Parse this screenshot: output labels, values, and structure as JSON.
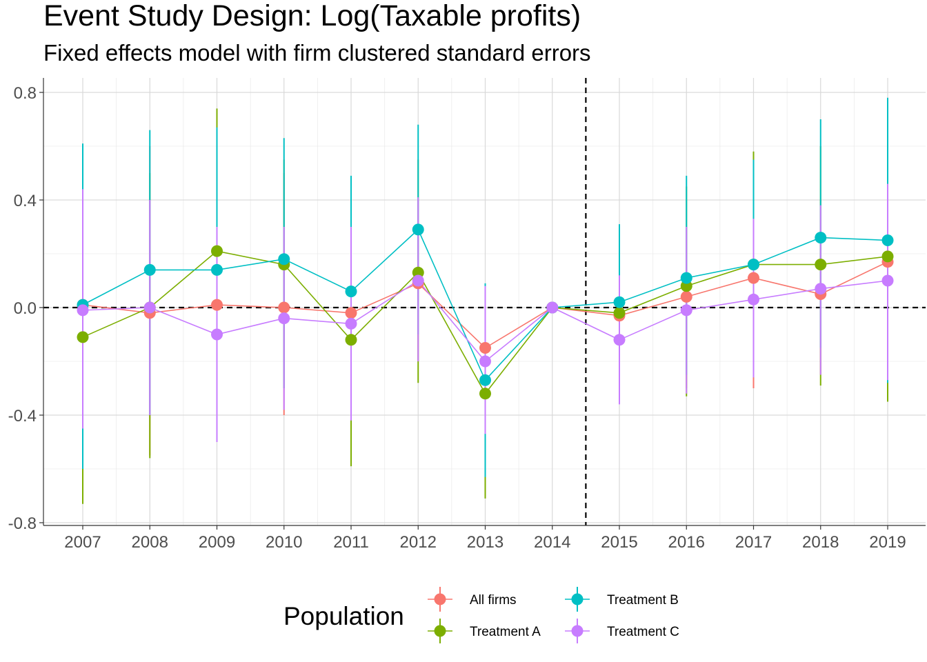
{
  "chart_data": {
    "type": "line",
    "title": "Event Study Design: Log(Taxable profits)",
    "subtitle": "Fixed effects model with firm clustered standard errors",
    "xlabel": "",
    "ylabel": "",
    "x": [
      2007,
      2008,
      2009,
      2010,
      2011,
      2012,
      2013,
      2014,
      2015,
      2016,
      2017,
      2018,
      2019
    ],
    "x_tick_labels": [
      "2007",
      "2008",
      "2009",
      "2010",
      "2011",
      "2012",
      "2013",
      "2014",
      "2015",
      "2016",
      "2017",
      "2018",
      "2019"
    ],
    "y_ticks": [
      -0.8,
      -0.4,
      0.0,
      0.4,
      0.8
    ],
    "y_tick_labels": [
      "-0.8",
      "-0.4",
      "0.0",
      "0.4",
      "0.8"
    ],
    "ylim": [
      -0.805,
      0.855
    ],
    "reference_lines": {
      "horizontal": 0.0,
      "vertical_between": [
        2014,
        2015
      ]
    },
    "grid": true,
    "legend": {
      "title": "Population",
      "position": "bottom"
    },
    "series": [
      {
        "name": "All firms",
        "color": "#F8766D",
        "values": [
          0.01,
          -0.02,
          0.01,
          0.0,
          -0.02,
          0.09,
          -0.15,
          0.0,
          -0.03,
          0.04,
          0.11,
          0.05,
          0.17
        ],
        "lower": [
          -0.45,
          -0.55,
          -0.35,
          -0.4,
          -0.45,
          -0.2,
          -0.48,
          0.0,
          -0.3,
          -0.3,
          -0.3,
          -0.25,
          -0.3
        ],
        "upper": [
          0.45,
          0.6,
          0.45,
          0.5,
          0.4,
          0.4,
          0.05,
          0.0,
          0.2,
          0.3,
          0.45,
          0.4,
          0.55
        ]
      },
      {
        "name": "Treatment A",
        "color": "#7CAE00",
        "values": [
          -0.11,
          0.0,
          0.21,
          0.16,
          -0.12,
          0.13,
          -0.32,
          0.0,
          -0.02,
          0.08,
          0.16,
          0.16,
          0.19
        ],
        "lower": [
          -0.73,
          -0.56,
          -0.3,
          -0.3,
          -0.59,
          -0.28,
          -0.71,
          0.0,
          -0.35,
          -0.33,
          -0.26,
          -0.29,
          -0.35
        ],
        "upper": [
          0.43,
          0.5,
          0.74,
          0.55,
          0.35,
          0.55,
          0.0,
          0.0,
          0.3,
          0.45,
          0.58,
          0.6,
          0.7
        ]
      },
      {
        "name": "Treatment B",
        "color": "#00BFC4",
        "values": [
          0.01,
          0.14,
          0.14,
          0.18,
          0.06,
          0.29,
          -0.27,
          0.0,
          0.02,
          0.11,
          0.16,
          0.26,
          0.25
        ],
        "lower": [
          -0.6,
          -0.4,
          -0.35,
          -0.3,
          -0.3,
          -0.1,
          -0.63,
          0.0,
          -0.25,
          -0.25,
          -0.2,
          -0.15,
          -0.28
        ],
        "upper": [
          0.61,
          0.66,
          0.67,
          0.63,
          0.49,
          0.68,
          0.09,
          0.0,
          0.31,
          0.49,
          0.55,
          0.7,
          0.78
        ]
      },
      {
        "name": "Treatment C",
        "color": "#C77CFF",
        "values": [
          -0.01,
          0.0,
          -0.1,
          -0.04,
          -0.06,
          0.1,
          -0.2,
          0.0,
          -0.12,
          -0.01,
          0.03,
          0.07,
          0.1
        ],
        "lower": [
          -0.45,
          -0.4,
          -0.5,
          -0.38,
          -0.42,
          -0.2,
          -0.47,
          0.0,
          -0.36,
          -0.32,
          -0.26,
          -0.25,
          -0.27
        ],
        "upper": [
          0.44,
          0.4,
          0.3,
          0.3,
          0.3,
          0.41,
          0.08,
          0.0,
          0.12,
          0.3,
          0.33,
          0.38,
          0.46
        ]
      }
    ]
  }
}
